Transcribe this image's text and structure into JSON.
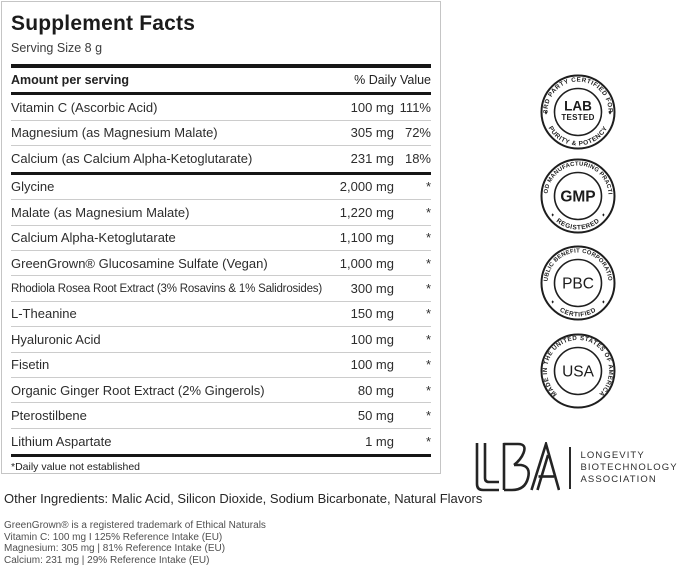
{
  "facts": {
    "title": "Supplement Facts",
    "serving": "Serving Size 8 g",
    "col_amount": "Amount per serving",
    "col_dv": "% Daily Value",
    "dv_rows": [
      {
        "name": "Vitamin C (Ascorbic Acid)",
        "amount": "100 mg",
        "dv": "111%"
      },
      {
        "name": "Magnesium (as Magnesium Malate)",
        "amount": "305 mg",
        "dv": "72%"
      },
      {
        "name": "Calcium (as Calcium Alpha-Ketoglutarate)",
        "amount": "231 mg",
        "dv": "18%"
      }
    ],
    "other_rows": [
      {
        "name": "Glycine",
        "amount": "2,000 mg",
        "dv": "*"
      },
      {
        "name": "Malate (as Magnesium Malate)",
        "amount": "1,220 mg",
        "dv": "*"
      },
      {
        "name": "Calcium Alpha-Ketoglutarate",
        "amount": "1,100 mg",
        "dv": "*"
      },
      {
        "name": "GreenGrown® Glucosamine Sulfate (Vegan)",
        "amount": "1,000 mg",
        "dv": "*"
      },
      {
        "name": "Rhodiola Rosea Root Extract (3% Rosavins & 1% Salidrosides)",
        "amount": "300 mg",
        "dv": "*"
      },
      {
        "name": "L-Theanine",
        "amount": "150 mg",
        "dv": "*"
      },
      {
        "name": "Hyaluronic Acid",
        "amount": "100 mg",
        "dv": "*"
      },
      {
        "name": "Fisetin",
        "amount": "100 mg",
        "dv": "*"
      },
      {
        "name": "Organic Ginger Root Extract (2% Gingerols)",
        "amount": "80 mg",
        "dv": "*"
      },
      {
        "name": "Pterostilbene",
        "amount": "50 mg",
        "dv": "*"
      },
      {
        "name": "Lithium Aspartate",
        "amount": "1 mg",
        "dv": "*"
      }
    ],
    "footnote": "*Daily value not established"
  },
  "other_ingredients": "Other Ingredients: Malic Acid, Silicon Dioxide, Sodium Bicarbonate, Natural Flavors",
  "fine_print": [
    "GreenGrown® is a registered trademark of Ethical Naturals",
    "Vitamin C: 100 mg I 125% Reference Intake (EU)",
    "Magnesium: 305 mg | 81% Reference Intake (EU)",
    "Calcium: 231 mg | 29% Reference Intake (EU)"
  ],
  "badges": [
    {
      "top": "3RD PARTY CERTIFIED FOR",
      "bottom": "PURITY & POTENCY",
      "line1": "LAB",
      "line2": "TESTED",
      "diamonds": "sides"
    },
    {
      "top": "GOOD MANUFACTURING PRACTICE",
      "bottom": "REGISTERED",
      "line1": "GMP",
      "diamonds": "lower"
    },
    {
      "top": "PUBLIC BENEFIT CORPORATION",
      "bottom": "CERTIFIED",
      "line1": "PBC",
      "diamonds": "lower"
    },
    {
      "around": "MADE IN THE UNITED STATES OF AMERICA",
      "line1": "USA",
      "diamonds": null
    }
  ],
  "logo": {
    "letters": "LBA",
    "org_lines": [
      "LONGEVITY",
      "BIOTECHNOLOGY",
      "ASSOCIATION"
    ]
  },
  "colors": {
    "ink": "#1f1f1f",
    "rule": "#cccccc",
    "bar": "#161616",
    "muted": "#4f4f4f",
    "border": "#c5c5c5"
  }
}
